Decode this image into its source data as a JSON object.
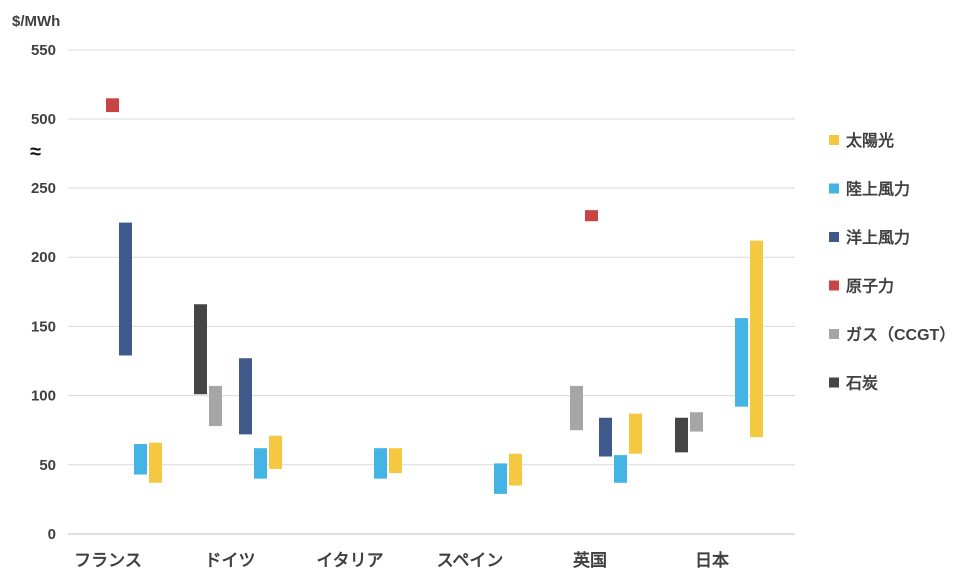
{
  "chart_data": {
    "type": "bar",
    "subtype": "floating-range",
    "unit_label": "$/MWh",
    "y_ticks": [
      "550",
      "500",
      "≈",
      "250",
      "200",
      "150",
      "100",
      "50",
      "0"
    ],
    "broken_axis": {
      "lower_max": 250,
      "upper_min": 500,
      "upper_max": 550
    },
    "categories": [
      "フランス",
      "ドイツ",
      "イタリア",
      "スペイン",
      "英国",
      "日本"
    ],
    "legend": {
      "position": "right"
    },
    "series": [
      {
        "name": "太陽光",
        "color": "#f5c842",
        "ranges": [
          [
            37,
            66
          ],
          [
            47,
            71
          ],
          [
            44,
            62
          ],
          [
            35,
            58
          ],
          [
            58,
            87
          ],
          [
            70,
            212
          ]
        ]
      },
      {
        "name": "陸上風力",
        "color": "#43b4e4",
        "ranges": [
          [
            43,
            65
          ],
          [
            40,
            62
          ],
          [
            40,
            62
          ],
          [
            29,
            51
          ],
          [
            37,
            57
          ],
          [
            92,
            156
          ]
        ]
      },
      {
        "name": "洋上風力",
        "color": "#3f5a8a",
        "ranges": [
          [
            129,
            225
          ],
          [
            72,
            127
          ],
          null,
          null,
          [
            56,
            84
          ],
          null
        ]
      },
      {
        "name": "原子力",
        "color": "#c94444",
        "ranges": [
          [
            505,
            515
          ],
          null,
          null,
          null,
          [
            226,
            234
          ],
          null
        ]
      },
      {
        "name": "ガス（CCGT）",
        "color": "#a6a6a6",
        "ranges": [
          null,
          [
            78,
            107
          ],
          null,
          null,
          [
            75,
            107
          ],
          [
            74,
            88
          ]
        ]
      },
      {
        "name": "石炭",
        "color": "#454545",
        "ranges": [
          null,
          [
            101,
            166
          ],
          null,
          null,
          null,
          [
            59,
            84
          ]
        ]
      }
    ],
    "plot_order": [
      [
        "原子力",
        "洋上風力",
        "陸上風力",
        "太陽光"
      ],
      [
        "石炭",
        "ガス（CCGT）",
        "洋上風力",
        "陸上風力",
        "太陽光"
      ],
      [
        "陸上風力",
        "太陽光"
      ],
      [
        "陸上風力",
        "太陽光"
      ],
      [
        "ガス（CCGT）",
        "原子力",
        "洋上風力",
        "陸上風力",
        "太陽光"
      ],
      [
        "石炭",
        "ガス（CCGT）",
        "陸上風力",
        "太陽光"
      ]
    ]
  }
}
